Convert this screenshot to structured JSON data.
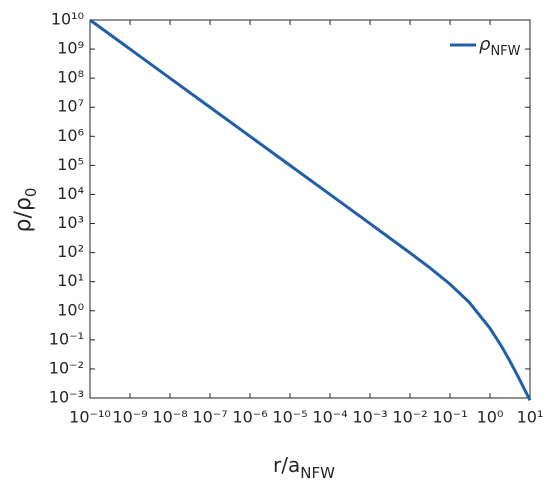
{
  "chart_data": {
    "type": "line",
    "xlabel": {
      "text": "r/a",
      "subscript": "NFW"
    },
    "ylabel": {
      "text": "ρ/ρ",
      "subscript": "0"
    },
    "xscale": "log",
    "yscale": "log",
    "x": [
      1e-10,
      1e-09,
      1e-08,
      1e-07,
      1e-06,
      1e-05,
      0.0001,
      0.001,
      0.01,
      0.03,
      0.1,
      0.3,
      1,
      2,
      3,
      5,
      10
    ],
    "series": [
      {
        "name": "ρ",
        "name_subscript": "NFW",
        "color": "#2060a8",
        "values": [
          10000000000.0,
          1000000000.0,
          100000000.0,
          10000000.0,
          1000000.0,
          100000.0,
          10000.0,
          998,
          98.03,
          31.42,
          8.264,
          1.972,
          0.25,
          0.0556,
          0.02083,
          0.005556,
          0.00083
        ]
      }
    ],
    "legend": "upper right",
    "xlim": [
      1e-10,
      10
    ],
    "ylim": [
      0.001,
      10000000000.0
    ],
    "xticks": [
      {
        "value": 1e-10,
        "label": "10⁻¹⁰"
      },
      {
        "value": 1e-09,
        "label": "10⁻⁹"
      },
      {
        "value": 1e-08,
        "label": "10⁻⁸"
      },
      {
        "value": 1e-07,
        "label": "10⁻⁷"
      },
      {
        "value": 1e-06,
        "label": "10⁻⁶"
      },
      {
        "value": 1e-05,
        "label": "10⁻⁵"
      },
      {
        "value": 0.0001,
        "label": "10⁻⁴"
      },
      {
        "value": 0.001,
        "label": "10⁻³"
      },
      {
        "value": 0.01,
        "label": "10⁻²"
      },
      {
        "value": 0.1,
        "label": "10⁻¹"
      },
      {
        "value": 1,
        "label": "10⁰"
      },
      {
        "value": 10,
        "label": "10¹"
      }
    ],
    "yticks": [
      {
        "value": 0.001,
        "label": "10⁻³"
      },
      {
        "value": 0.01,
        "label": "10⁻²"
      },
      {
        "value": 0.1,
        "label": "10⁻¹"
      },
      {
        "value": 1,
        "label": "10⁰"
      },
      {
        "value": 10,
        "label": "10¹"
      },
      {
        "value": 100,
        "label": "10²"
      },
      {
        "value": 1000,
        "label": "10³"
      },
      {
        "value": 10000,
        "label": "10⁴"
      },
      {
        "value": 100000,
        "label": "10⁵"
      },
      {
        "value": 1000000,
        "label": "10⁶"
      },
      {
        "value": 10000000,
        "label": "10⁷"
      },
      {
        "value": 100000000,
        "label": "10⁸"
      },
      {
        "value": 1000000000,
        "label": "10⁹"
      },
      {
        "value": 10000000000,
        "label": "10¹⁰"
      }
    ]
  }
}
